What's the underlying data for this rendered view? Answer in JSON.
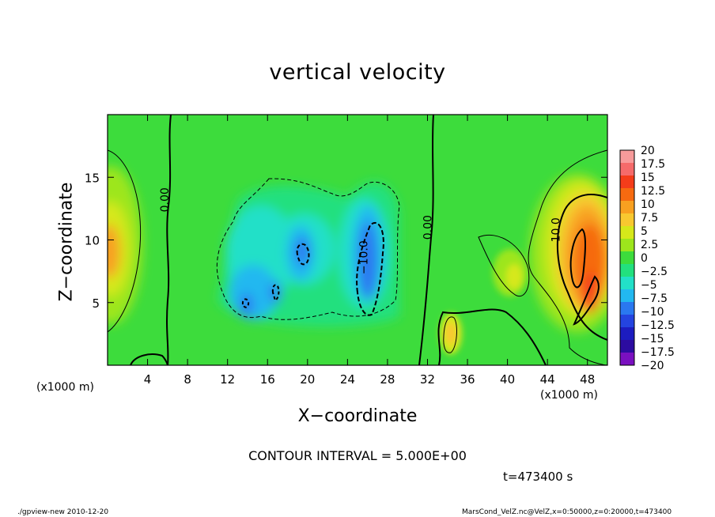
{
  "chart_data": {
    "type": "heatmap",
    "title": "vertical velocity",
    "xlabel": "X-coordinate",
    "ylabel": "Z-coordinate",
    "x_unit": "(x1000 m)",
    "y_unit": "(x1000 m)",
    "xlim": [
      0,
      50
    ],
    "ylim": [
      0,
      20
    ],
    "x_ticks": [
      4,
      8,
      12,
      16,
      20,
      24,
      28,
      32,
      36,
      40,
      44,
      48
    ],
    "y_ticks": [
      5,
      10,
      15
    ],
    "colorbar": {
      "levels": [
        20,
        17.5,
        15,
        12.5,
        10,
        7.5,
        5,
        2.5,
        0,
        -2.5,
        -5,
        -7.5,
        -10,
        -12.5,
        -15,
        -17.5,
        -20
      ],
      "level_labels": [
        "20",
        "17.5",
        "15",
        "12.5",
        "10",
        "7.5",
        "5",
        "2.5",
        "0",
        "−2.5",
        "−5",
        "−7.5",
        "−10",
        "−12.5",
        "−15",
        "−17.5",
        "−20"
      ],
      "colors": [
        "#f79b9b",
        "#f56a6a",
        "#f43c1a",
        "#f66a10",
        "#f8a020",
        "#f8c830",
        "#d6e81a",
        "#9de61c",
        "#3ddc3c",
        "#22e07e",
        "#22e0c8",
        "#22b8f0",
        "#2a78f0",
        "#2444e0",
        "#1c1cc0",
        "#2c0ca0",
        "#7a10c0"
      ]
    },
    "contour_labels": [
      {
        "text": "0.00",
        "x": 6.1,
        "z": 13.2
      },
      {
        "text": "0.00",
        "x": 32.4,
        "z": 11.0
      },
      {
        "text": "−10.0",
        "x": 26.0,
        "z": 8.6
      },
      {
        "text": "10.0",
        "x": 45.2,
        "z": 10.8
      }
    ],
    "contour_interval": 5.0,
    "time_s": 473400
  },
  "labels": {
    "title": "vertical velocity",
    "x_axis": "X−coordinate",
    "y_axis": "Z−coordinate",
    "x_unit_left": "(x1000 m)",
    "x_unit_right": "(x1000 m)",
    "contour_interval": "CONTOUR INTERVAL = 5.000E+00",
    "time": "t=473400  s",
    "footer_left": "./gpview-new   2010-12-20",
    "footer_right": "MarsCond_VelZ.nc@VelZ,x=0:50000,z=0:20000,t=473400"
  },
  "colors": {
    "background_field": "#3ddc3c",
    "axis": "#000000"
  }
}
